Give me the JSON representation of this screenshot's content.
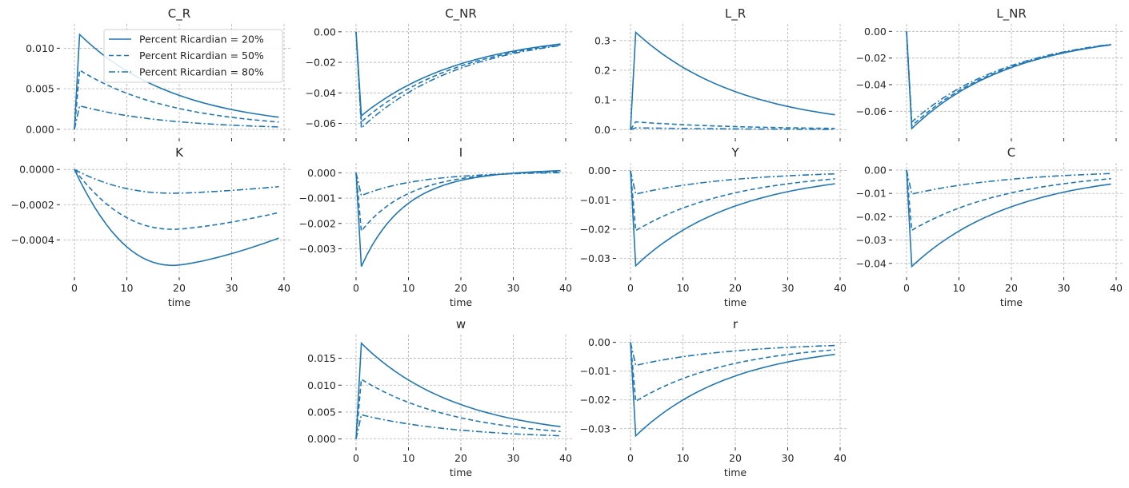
{
  "chart_data": {
    "type": "line",
    "layout": "grid-3x4",
    "legend": {
      "placement": "top-right of first panel",
      "entries": [
        "Percent Ricardian = 20%",
        "Percent Ricardian = 50%",
        "Percent Ricardian = 80%"
      ],
      "styles": [
        "solid",
        "dashed",
        "dashdot"
      ]
    },
    "color": "#1f77b4",
    "x": {
      "start": 0,
      "end": 39,
      "label": "time",
      "ticks": [
        0,
        10,
        20,
        30,
        40
      ],
      "lim": [
        0,
        40
      ]
    },
    "panels": [
      {
        "title": "C_R",
        "row": 0,
        "col": 0,
        "xlabel": "",
        "show_xticklabels": false,
        "yticks": [
          "0.000",
          "0.005",
          "0.010"
        ],
        "ytick_values": [
          0,
          0.005,
          0.01
        ],
        "ylim": [
          -0.0004,
          0.0124
        ],
        "series": [
          {
            "name": "Percent Ricardian = 20%",
            "impact": 0.0117,
            "t39": 0.0015
          },
          {
            "name": "Percent Ricardian = 50%",
            "impact": 0.0073,
            "t39": 0.0009
          },
          {
            "name": "Percent Ricardian = 80%",
            "impact": 0.0029,
            "t39": 0.0003
          }
        ]
      },
      {
        "title": "C_NR",
        "row": 0,
        "col": 1,
        "xlabel": "",
        "show_xticklabels": false,
        "yticks": [
          "0.00",
          "−0.02",
          "−0.04",
          "−0.06"
        ],
        "ytick_values": [
          0,
          -0.02,
          -0.04,
          -0.06
        ],
        "ylim": [
          -0.066,
          0.002
        ],
        "series": [
          {
            "name": "Percent Ricardian = 20%",
            "impact": -0.055,
            "t39": -0.008
          },
          {
            "name": "Percent Ricardian = 50%",
            "impact": -0.059,
            "t39": -0.0085
          },
          {
            "name": "Percent Ricardian = 80%",
            "impact": -0.063,
            "t39": -0.009
          }
        ]
      },
      {
        "title": "L_R",
        "row": 0,
        "col": 2,
        "xlabel": "",
        "show_xticklabels": false,
        "yticks": [
          "0.0",
          "0.1",
          "0.2",
          "0.3"
        ],
        "ytick_values": [
          0,
          0.1,
          0.2,
          0.3
        ],
        "ylim": [
          -0.01,
          0.34
        ],
        "series": [
          {
            "name": "Percent Ricardian = 20%",
            "impact": 0.328,
            "t39": 0.05
          },
          {
            "name": "Percent Ricardian = 50%",
            "impact": 0.026,
            "t39": 0.004
          },
          {
            "name": "Percent Ricardian = 80%",
            "impact": 0.006,
            "t39": 0.001
          }
        ]
      },
      {
        "title": "L_NR",
        "row": 0,
        "col": 3,
        "xlabel": "",
        "show_xticklabels": false,
        "yticks": [
          "0.00",
          "−0.02",
          "−0.04",
          "−0.06"
        ],
        "ytick_values": [
          0,
          -0.02,
          -0.04,
          -0.06
        ],
        "ylim": [
          -0.076,
          0.002
        ],
        "series": [
          {
            "name": "Percent Ricardian = 20%",
            "impact": -0.073,
            "t39": -0.0101
          },
          {
            "name": "Percent Ricardian = 50%",
            "impact": -0.071,
            "t39": -0.0099
          },
          {
            "name": "Percent Ricardian = 80%",
            "impact": -0.068,
            "t39": -0.0097
          }
        ]
      },
      {
        "title": "K",
        "row": 1,
        "col": 0,
        "xlabel": "time",
        "show_xticklabels": true,
        "yticks": [
          "0.0000",
          "−0.0002",
          "−0.0004"
        ],
        "ytick_values": [
          0,
          -0.0002,
          -0.0004
        ],
        "ylim": [
          -0.00058,
          1e-05
        ],
        "shape": "hump",
        "series": [
          {
            "name": "Percent Ricardian = 20%",
            "min": -0.000545,
            "tmin": 19,
            "t39": -0.00039
          },
          {
            "name": "Percent Ricardian = 50%",
            "min": -0.00034,
            "tmin": 19,
            "t39": -0.000245
          },
          {
            "name": "Percent Ricardian = 80%",
            "min": -0.000135,
            "tmin": 19,
            "t39": -9.75e-05
          }
        ]
      },
      {
        "title": "I",
        "row": 1,
        "col": 1,
        "xlabel": "time",
        "show_xticklabels": true,
        "yticks": [
          "0.000",
          "−0.001",
          "−0.002",
          "−0.003"
        ],
        "ytick_values": [
          0,
          -0.001,
          -0.002,
          -0.003
        ],
        "ylim": [
          -0.0039,
          0.0002
        ],
        "series": [
          {
            "name": "Percent Ricardian = 20%",
            "impact": -0.0037,
            "t39": 0.00012,
            "cross": 30
          },
          {
            "name": "Percent Ricardian = 50%",
            "impact": -0.0023,
            "t39": 8e-05,
            "cross": 30
          },
          {
            "name": "Percent Ricardian = 80%",
            "impact": -0.0009,
            "t39": 3e-05,
            "cross": 30
          }
        ]
      },
      {
        "title": "Y",
        "row": 1,
        "col": 2,
        "xlabel": "time",
        "show_xticklabels": true,
        "yticks": [
          "0.00",
          "−0.01",
          "−0.02",
          "−0.03"
        ],
        "ytick_values": [
          0,
          -0.01,
          -0.02,
          -0.03
        ],
        "ylim": [
          -0.0345,
          0.001
        ],
        "series": [
          {
            "name": "Percent Ricardian = 20%",
            "impact": -0.0325,
            "t39": -0.0045
          },
          {
            "name": "Percent Ricardian = 50%",
            "impact": -0.0205,
            "t39": -0.0028
          },
          {
            "name": "Percent Ricardian = 80%",
            "impact": -0.008,
            "t39": -0.0011
          }
        ]
      },
      {
        "title": "C",
        "row": 1,
        "col": 3,
        "xlabel": "time",
        "show_xticklabels": true,
        "yticks": [
          "0.00",
          "−0.01",
          "−0.02",
          "−0.03",
          "−0.04"
        ],
        "ytick_values": [
          0,
          -0.01,
          -0.02,
          -0.03,
          -0.04
        ],
        "ylim": [
          -0.0435,
          0.001
        ],
        "series": [
          {
            "name": "Percent Ricardian = 20%",
            "impact": -0.0413,
            "t39": -0.006
          },
          {
            "name": "Percent Ricardian = 50%",
            "impact": -0.0258,
            "t39": -0.0037
          },
          {
            "name": "Percent Ricardian = 80%",
            "impact": -0.0103,
            "t39": -0.0015
          }
        ]
      },
      {
        "title": "w",
        "row": 2,
        "col": 1,
        "xlabel": "time",
        "show_xticklabels": true,
        "yticks": [
          "0.000",
          "0.005",
          "0.010",
          "0.015"
        ],
        "ytick_values": [
          0,
          0.005,
          0.01,
          0.015
        ],
        "ylim": [
          -0.0005,
          0.0185
        ],
        "series": [
          {
            "name": "Percent Ricardian = 20%",
            "impact": 0.0178,
            "t39": 0.0023
          },
          {
            "name": "Percent Ricardian = 50%",
            "impact": 0.0111,
            "t39": 0.0014
          },
          {
            "name": "Percent Ricardian = 80%",
            "impact": 0.0045,
            "t39": 0.0006
          }
        ]
      },
      {
        "title": "r",
        "row": 2,
        "col": 2,
        "xlabel": "time",
        "show_xticklabels": true,
        "yticks": [
          "0.00",
          "−0.01",
          "−0.02",
          "−0.03"
        ],
        "ytick_values": [
          0,
          -0.01,
          -0.02,
          -0.03
        ],
        "ylim": [
          -0.0345,
          0.001
        ],
        "series": [
          {
            "name": "Percent Ricardian = 20%",
            "impact": -0.0325,
            "t39": -0.0042
          },
          {
            "name": "Percent Ricardian = 50%",
            "impact": -0.0205,
            "t39": -0.0026
          },
          {
            "name": "Percent Ricardian = 80%",
            "impact": -0.008,
            "t39": -0.0011
          }
        ]
      }
    ]
  }
}
